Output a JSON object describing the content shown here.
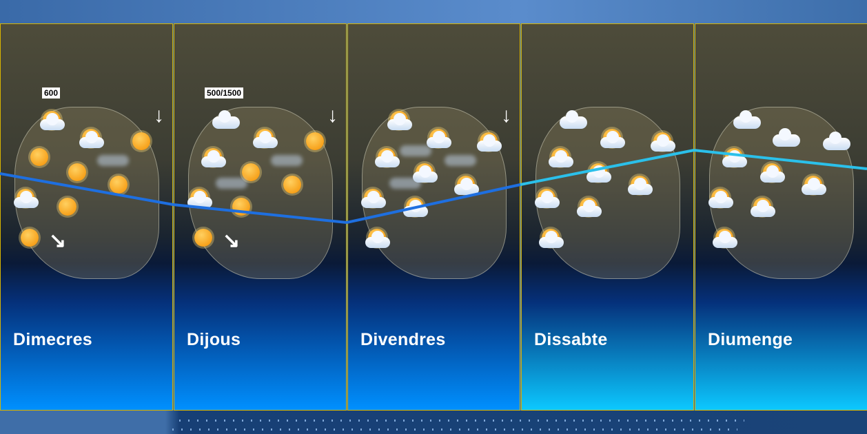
{
  "days": [
    {
      "name": "Dimecres",
      "bottom_color": "#0090ff",
      "snow_level": "600",
      "wind": [
        "wind-north-arrow",
        "wind-southeast-arrow"
      ],
      "icons": [
        "sun-cloud",
        "sun-cloud",
        "sun",
        "sun",
        "sun",
        "fog",
        "sun",
        "sun-cloud",
        "sun",
        "sun",
        null,
        null
      ]
    },
    {
      "name": "Dijous",
      "bottom_color": "#0090ff",
      "snow_level": "500/1500",
      "wind": [
        "wind-north-arrow",
        "wind-southeast-arrow"
      ],
      "icons": [
        "cloud",
        "sun-cloud",
        "sun",
        "sun-cloud",
        "sun",
        "fog",
        "sun",
        "sun-cloud",
        "sun",
        "sun",
        "fog",
        null
      ]
    },
    {
      "name": "Divendres",
      "bottom_color": "#0090ff",
      "snow_level": null,
      "wind": [
        "wind-north-arrow"
      ],
      "icons": [
        "sun-cloud",
        "sun-cloud",
        "sun-cloud",
        "sun-cloud",
        "sun-cloud",
        "fog",
        "sun-cloud",
        "sun-cloud",
        "sun-cloud",
        "sun-cloud",
        "fog",
        "fog"
      ]
    },
    {
      "name": "Dissabte",
      "bottom_color": "#0cc8ff",
      "snow_level": null,
      "wind": [],
      "icons": [
        "cloud",
        "sun-cloud",
        "sun-cloud",
        "sun-cloud",
        "sun-cloud",
        null,
        "sun-cloud",
        "sun-cloud",
        "sun-cloud",
        "sun-cloud",
        null,
        null
      ]
    },
    {
      "name": "Diumenge",
      "bottom_color": "#0cc8ff",
      "snow_level": null,
      "wind": [],
      "icons": [
        "cloud",
        "cloud",
        "cloud",
        "sun-cloud",
        "sun-cloud",
        null,
        "sun-cloud",
        "sun-cloud",
        "sun-cloud",
        "sun-cloud",
        null,
        null
      ]
    }
  ],
  "colors": {
    "border": "#d8b400",
    "trend_dark": "#1e6fe0",
    "trend_light": "#2bc0ea"
  }
}
